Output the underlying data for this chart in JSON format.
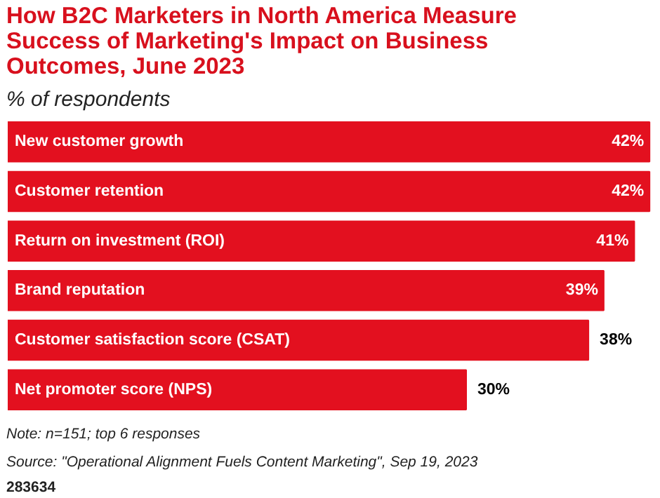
{
  "chart_data": {
    "type": "bar",
    "orientation": "horizontal",
    "title": "How B2C Marketers in North America Measure Success of Marketing's Impact on Business Outcomes, June 2023",
    "subtitle": "% of respondents",
    "categories": [
      "New customer growth",
      "Customer retention",
      "Return on investment (ROI)",
      "Brand reputation",
      "Customer satisfaction score (CSAT)",
      "Net promoter score (NPS)"
    ],
    "values": [
      42,
      42,
      41,
      39,
      38,
      30
    ],
    "value_labels": [
      "42%",
      "42%",
      "41%",
      "39%",
      "38%",
      "30%"
    ],
    "color": "#e3101f",
    "annotations": [
      "Note: n=151; top 6 responses",
      "Source: \"Operational Alignment Fuels Content Marketing\", Sep 19, 2023",
      "283634"
    ]
  }
}
